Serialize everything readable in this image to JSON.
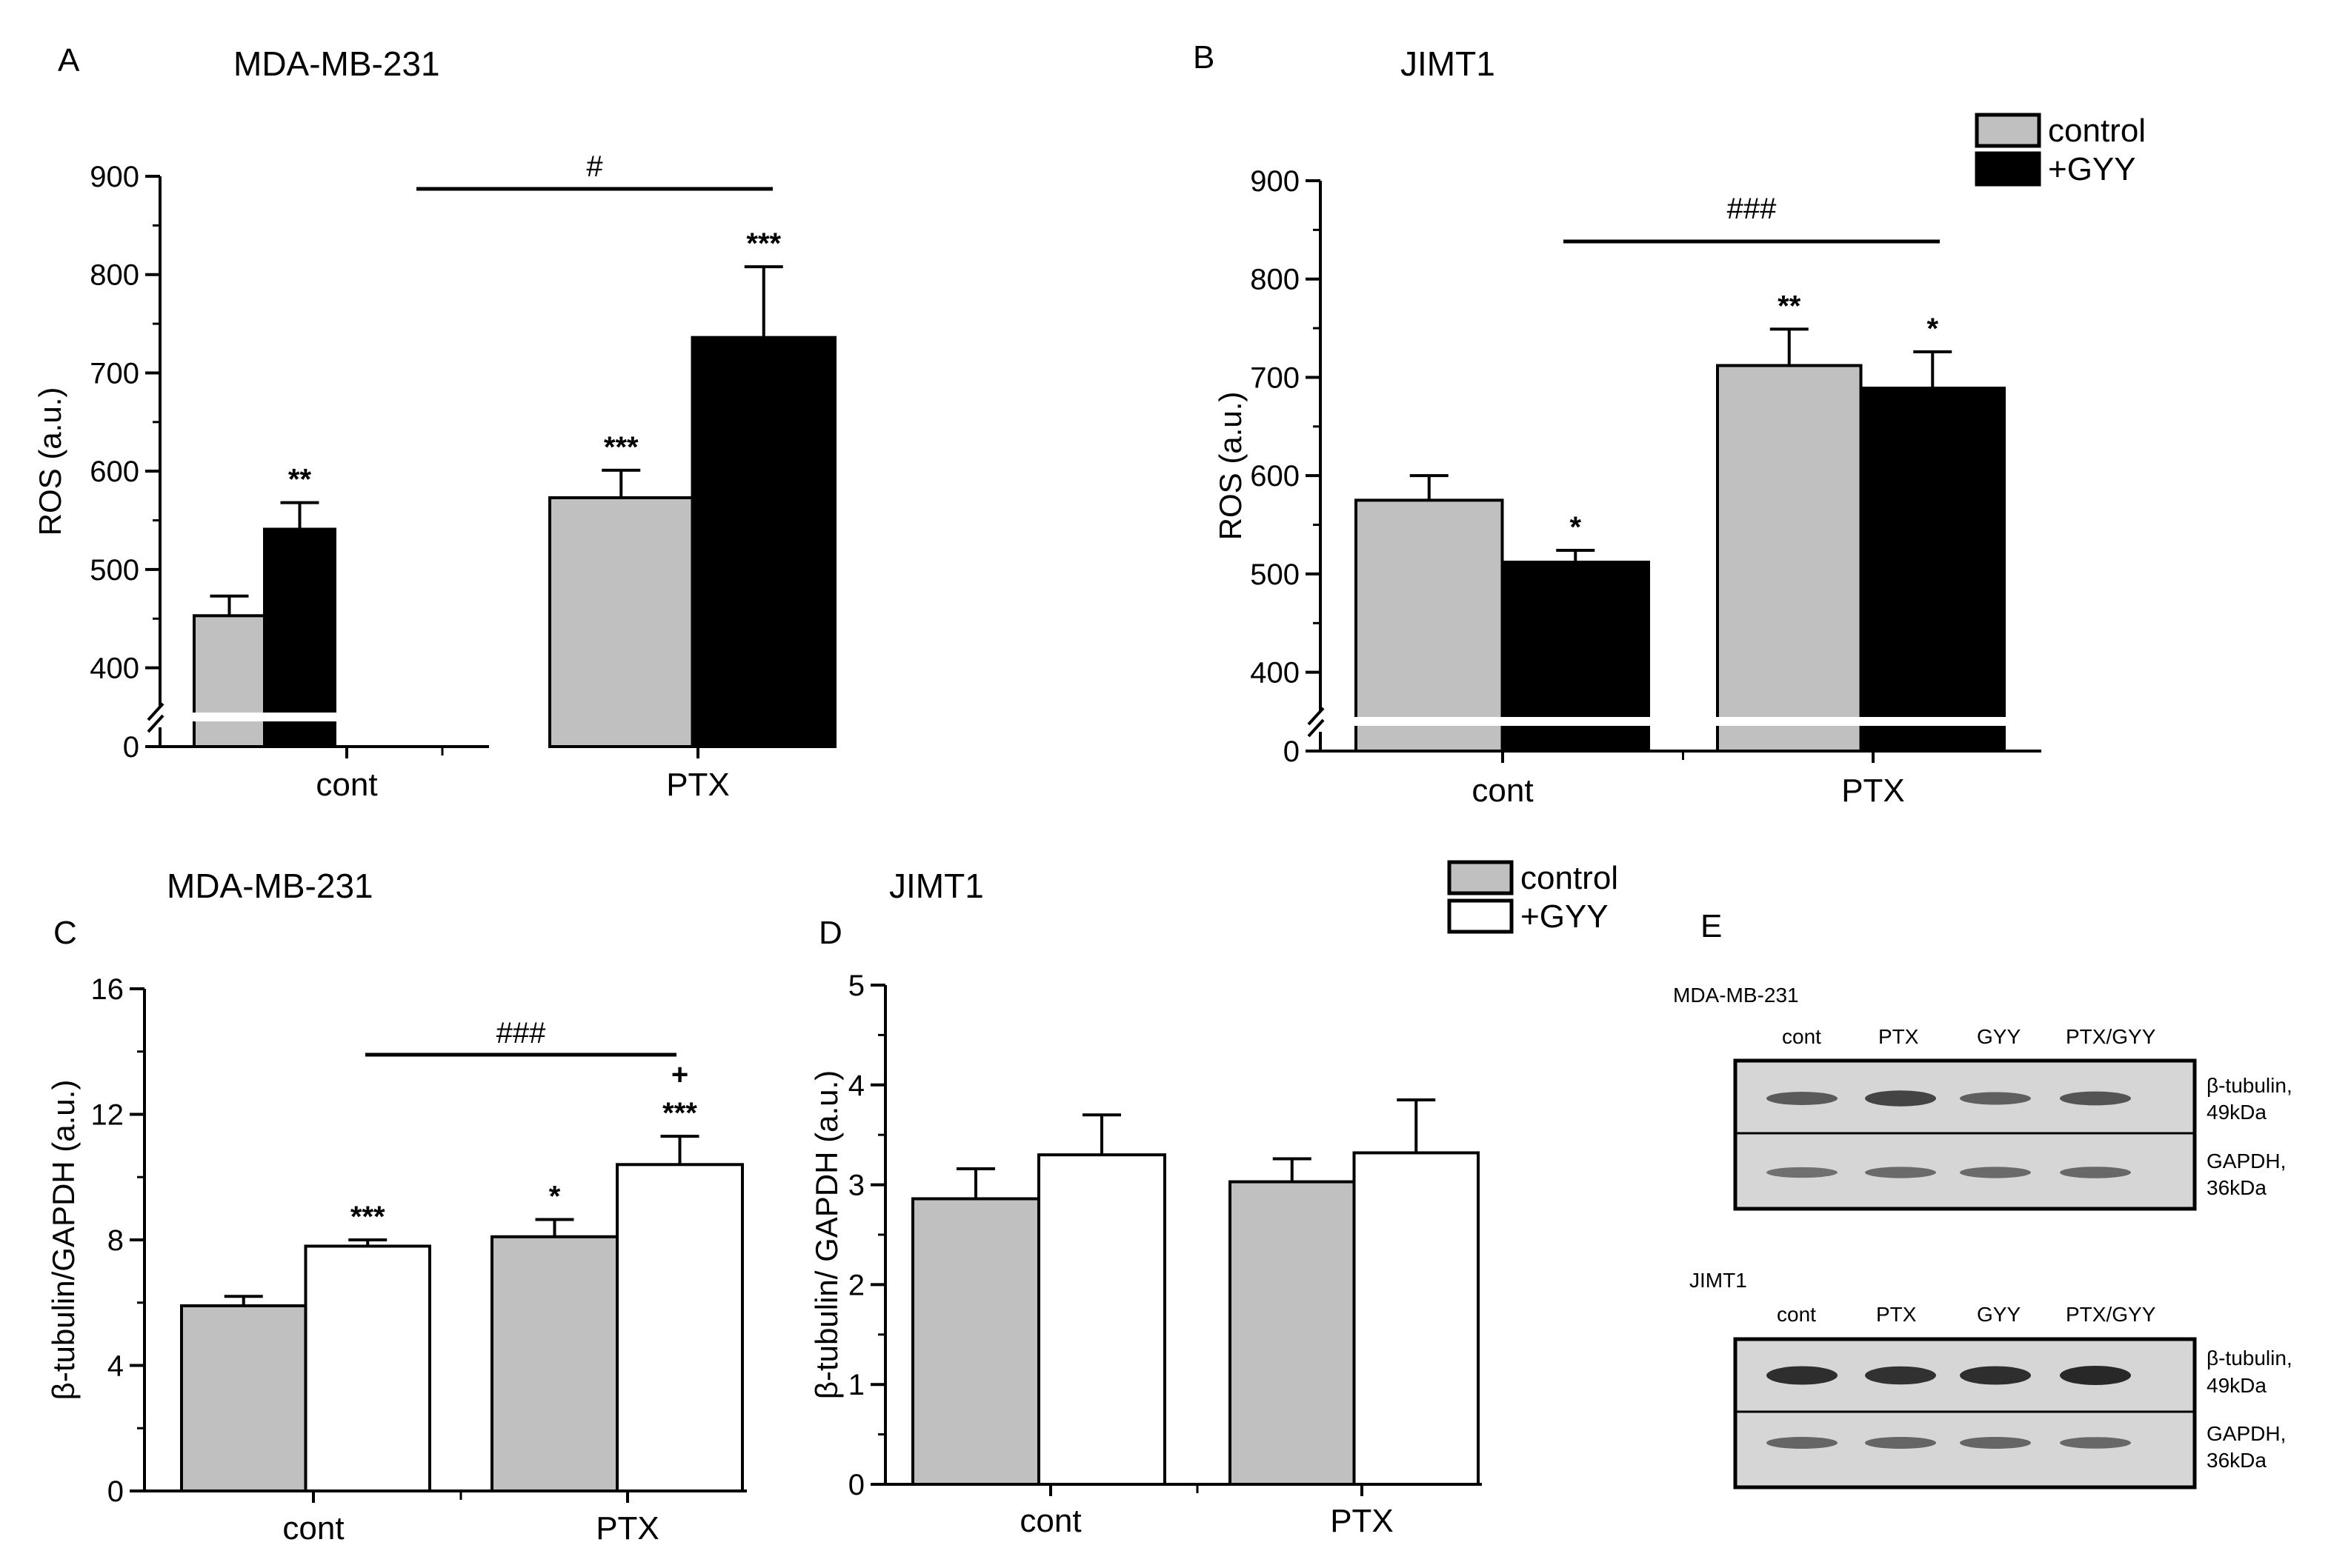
{
  "chart_data": [
    {
      "panel": "A",
      "type": "bar",
      "title": "MDA-MB-231",
      "ylabel": "ROS (a.u.)",
      "xlabel": "",
      "categories": [
        "cont",
        "PTX"
      ],
      "ylim": [
        350,
        900
      ],
      "axis_break": true,
      "yticks": [
        "0",
        "400",
        "500",
        "600",
        "700",
        "800",
        "900"
      ],
      "series": [
        {
          "name": "control",
          "color": "#c0c0c0",
          "values": [
            453,
            573
          ],
          "errors": [
            20,
            28
          ],
          "marks": [
            "",
            "***"
          ]
        },
        {
          "name": "+GYY",
          "color": "#000000",
          "values": [
            541,
            736
          ],
          "errors": [
            27,
            72
          ],
          "marks": [
            "**",
            "***"
          ]
        }
      ],
      "significance": {
        "label": "#"
      },
      "legend": []
    },
    {
      "panel": "B",
      "type": "bar",
      "title": "JIMT1",
      "ylabel": "ROS (a.u.)",
      "xlabel": "",
      "categories": [
        "cont",
        "PTX"
      ],
      "ylim": [
        350,
        900
      ],
      "axis_break": true,
      "yticks": [
        "0",
        "400",
        "500",
        "600",
        "700",
        "800",
        "900"
      ],
      "series": [
        {
          "name": "control",
          "color": "#c0c0c0",
          "values": [
            575,
            712
          ],
          "errors": [
            25,
            37
          ],
          "marks": [
            "",
            "**"
          ]
        },
        {
          "name": "+GYY",
          "color": "#000000",
          "values": [
            512,
            689
          ],
          "errors": [
            12,
            37
          ],
          "marks": [
            "*",
            "*"
          ]
        }
      ],
      "significance": {
        "label": "###"
      },
      "legend": [
        "control",
        "+GYY"
      ]
    },
    {
      "panel": "C",
      "type": "bar",
      "title": "MDA-MB-231",
      "ylabel": "β-tubulin/GAPDH (a.u.)",
      "xlabel": "",
      "categories": [
        "cont",
        "PTX"
      ],
      "ylim": [
        0,
        16
      ],
      "yticks": [
        "0",
        "4",
        "8",
        "12",
        "16"
      ],
      "series": [
        {
          "name": "control",
          "color": "#c0c0c0",
          "values": [
            5.9,
            8.1
          ],
          "errors": [
            0.3,
            0.55
          ],
          "marks": [
            "",
            "*"
          ]
        },
        {
          "name": "+GYY",
          "color": "#ffffff",
          "values": [
            7.8,
            10.4
          ],
          "errors": [
            0.2,
            0.9
          ],
          "marks": [
            "***",
            "***"
          ]
        }
      ],
      "extra_mark": "+",
      "significance": {
        "label": "###"
      },
      "legend": [
        "control",
        "+GYY"
      ]
    },
    {
      "panel": "D",
      "type": "bar",
      "title": "JIMT1",
      "ylabel": "β-tubulin/ GAPDH (a.u.)",
      "xlabel": "",
      "categories": [
        "cont",
        "PTX"
      ],
      "ylim": [
        0,
        5
      ],
      "yticks": [
        "0",
        "1",
        "2",
        "3",
        "4",
        "5"
      ],
      "series": [
        {
          "name": "control",
          "color": "#c0c0c0",
          "values": [
            2.86,
            3.03
          ],
          "errors": [
            0.3,
            0.23
          ],
          "marks": [
            "",
            ""
          ]
        },
        {
          "name": "+GYY",
          "color": "#ffffff",
          "values": [
            3.3,
            3.32
          ],
          "errors": [
            0.4,
            0.53
          ],
          "marks": [
            "",
            ""
          ]
        }
      ],
      "legend": []
    }
  ],
  "panel_e": {
    "label": "E",
    "blots": [
      {
        "cell_line": "MDA-MB-231",
        "lanes": [
          "cont",
          "PTX",
          "GYY",
          "PTX/GYY"
        ],
        "bands": [
          {
            "protein": "β-tubulin,",
            "size": "49kDa",
            "intensities": [
              0.55,
              0.75,
              0.5,
              0.6
            ]
          },
          {
            "protein": "GAPDH,",
            "size": "36kDa",
            "intensities": [
              0.35,
              0.4,
              0.4,
              0.42
            ]
          }
        ]
      },
      {
        "cell_line": "JIMT1",
        "lanes": [
          "cont",
          "PTX",
          "GYY",
          "PTX/GYY"
        ],
        "bands": [
          {
            "protein": "β-tubulin,",
            "size": "49kDa",
            "intensities": [
              0.95,
              0.92,
              0.95,
              1.0
            ]
          },
          {
            "protein": "GAPDH,",
            "size": "36kDa",
            "intensities": [
              0.45,
              0.45,
              0.45,
              0.42
            ]
          }
        ]
      }
    ]
  },
  "colors": {
    "control": "#c0c0c0",
    "gyy_dark": "#000000",
    "gyy_open": "#ffffff",
    "axis": "#000000",
    "blot_background": "#d6d6d6",
    "band": "#404040"
  }
}
